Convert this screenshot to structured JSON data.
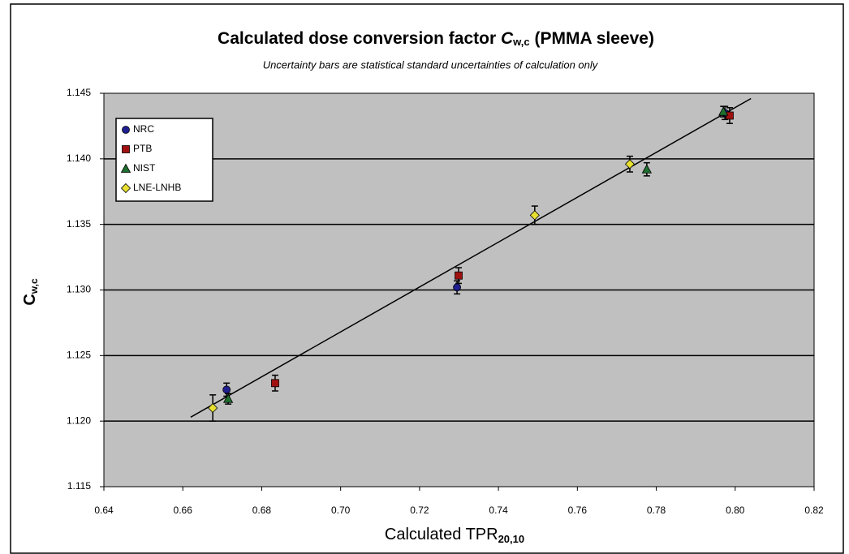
{
  "chart_data": {
    "type": "scatter",
    "title": "Calculated dose conversion factor",
    "title_symbol": "C",
    "title_subscript": "w,c",
    "title_suffix": "(PMMA sleeve)",
    "subtitle": "Uncertainty bars are statistical standard uncertainties of calculation only",
    "x_label": "Calculated TPR",
    "x_label_subscript": "20,10",
    "y_label": "C",
    "y_label_subscript": "w,c",
    "xlim": [
      0.64,
      0.82
    ],
    "ylim": [
      1.115,
      1.145
    ],
    "xticks": [
      0.64,
      0.66,
      0.68,
      {
        "value": 0.7,
        "label": "0.70"
      },
      0.72,
      0.74,
      0.76,
      0.78,
      {
        "value": 0.8,
        "label": "0.80"
      },
      0.82
    ],
    "yticks": [
      1.115,
      {
        "value": 1.12,
        "label": "1.120"
      },
      1.125,
      {
        "value": 1.13,
        "label": "1.130"
      },
      1.135,
      {
        "value": 1.14,
        "label": "1.140"
      },
      1.145
    ],
    "grid": true,
    "legend": "upper left",
    "series": [
      {
        "name": "NRC",
        "color": "#1f1f8f",
        "marker": "circle",
        "x": [
          0.6711,
          0.7295,
          0.7974
        ],
        "values": [
          1.1224,
          1.1302,
          1.1435
        ],
        "errors": [
          0.0005,
          0.0005,
          0.0005
        ]
      },
      {
        "name": "PTB",
        "color": "#a01010",
        "marker": "square",
        "x": [
          0.6834,
          0.7299,
          0.7986
        ],
        "values": [
          1.1229,
          1.1311,
          1.1433
        ],
        "errors": [
          0.0006,
          0.0006,
          0.0006
        ]
      },
      {
        "name": "NIST",
        "color": "#1f6f2f",
        "marker": "triangle",
        "x": [
          0.6715,
          0.7776,
          0.797
        ],
        "values": [
          1.1217,
          1.1392,
          1.1436
        ],
        "errors": [
          0.0004,
          0.0005,
          0.0004
        ]
      },
      {
        "name": "LNE-LNHB",
        "color": "#e8e030",
        "marker": "diamond",
        "x": [
          0.6676,
          0.7492,
          0.7733
        ],
        "values": [
          1.121,
          1.1357,
          1.1396
        ],
        "errors": [
          0.001,
          0.0007,
          0.0006
        ]
      }
    ],
    "fit_line": {
      "color": "#000000",
      "x": [
        0.662,
        0.804
      ],
      "y": [
        1.1203,
        1.1446
      ]
    }
  }
}
